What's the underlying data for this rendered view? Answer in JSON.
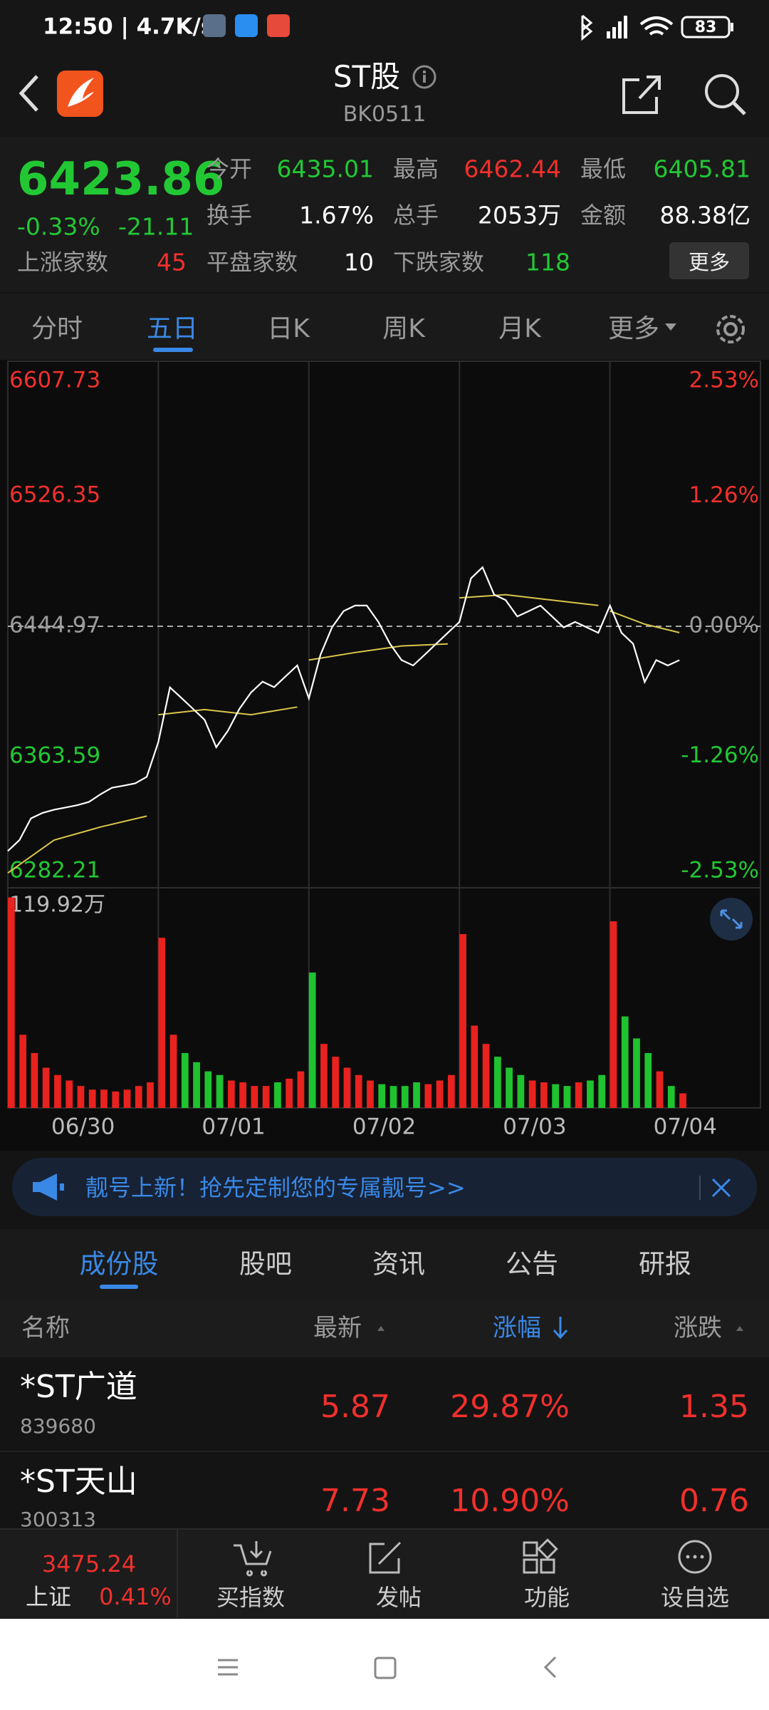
{
  "status": {
    "time": "12:50 | 4.7K/s",
    "battery": "83"
  },
  "header": {
    "title": "ST股",
    "code": "BK0511"
  },
  "quote": {
    "price": "6423.86",
    "change_pct": "-0.33%",
    "change": "-21.11",
    "fields": [
      {
        "label": "今开",
        "value": "6435.01"
      },
      {
        "label": "最高",
        "value": "6462.44"
      },
      {
        "label": "最低",
        "value": "6405.81"
      },
      {
        "label": "换手",
        "value": "1.67%"
      },
      {
        "label": "总手",
        "value": "2053万"
      },
      {
        "label": "金额",
        "value": "88.38亿"
      },
      {
        "label": "上涨家数",
        "value": "45"
      },
      {
        "label": "平盘家数",
        "value": "10"
      },
      {
        "label": "下跌家数",
        "value": "118"
      }
    ],
    "more": "更多"
  },
  "tabs": [
    "分时",
    "五日",
    "日K",
    "周K",
    "月K",
    "更多"
  ],
  "chart_data": {
    "type": "line",
    "categories": [
      "06/30",
      "07/01",
      "07/02",
      "07/03",
      "07/04"
    ],
    "xlim": [
      0,
      65
    ],
    "ylim": [
      6282.21,
      6607.73
    ],
    "yticks": [
      6607.73,
      6526.35,
      6444.97,
      6363.59,
      6282.21
    ],
    "y2lim": [
      -2.53,
      2.53
    ],
    "y2ticks": [
      {
        "value": 2.53,
        "label": "2.53%"
      },
      {
        "value": 1.26,
        "label": "1.26%"
      },
      {
        "value": 0,
        "label": "0.00%"
      },
      {
        "value": -1.26,
        "label": "-1.26%"
      },
      {
        "value": -2.53,
        "label": "-2.53%"
      }
    ],
    "series": [
      {
        "color": "#ffffff",
        "x": [
          0,
          1,
          2,
          3,
          4,
          5,
          6,
          7,
          8,
          9,
          10,
          11,
          12,
          13,
          14,
          15,
          16,
          17,
          18,
          19,
          20,
          21,
          22,
          23,
          24,
          25,
          26,
          27,
          28,
          29,
          30,
          31,
          32,
          33,
          34,
          35,
          36,
          37,
          38,
          39,
          40,
          41,
          42,
          43,
          44,
          45,
          46,
          47,
          48,
          49,
          50,
          51,
          52,
          53,
          54,
          55,
          56,
          57,
          58
        ],
        "values": [
          6304.7,
          6311.5,
          6325.1,
          6328.5,
          6330.5,
          6331.9,
          6333.3,
          6335.3,
          6340.1,
          6344.2,
          6345.5,
          6346.9,
          6351.0,
          6372.8,
          6406.8,
          6400.2,
          6393.4,
          6386.6,
          6369.5,
          6379.7,
          6393.4,
          6403.6,
          6410.4,
          6407.0,
          6413.8,
          6420.5,
          6400.0,
          6427.2,
          6444.3,
          6454.5,
          6457.9,
          6457.9,
          6447.7,
          6434.1,
          6423.9,
          6420.5,
          6427.2,
          6434.1,
          6440.9,
          6447.7,
          6474.9,
          6481.8,
          6464.7,
          6461.3,
          6451.1,
          6454.5,
          6457.9,
          6451.1,
          6444.3,
          6447.7,
          6444.3,
          6440.9,
          6457.9,
          6440.9,
          6434.1,
          6410.2,
          6423.9,
          6420.5,
          6423.86
        ]
      },
      {
        "color": "#d9c64a",
        "x": [
          0,
          4,
          8,
          12,
          13,
          17,
          21,
          25,
          26,
          30,
          34,
          38,
          39,
          43,
          47,
          51,
          52,
          55,
          58
        ],
        "values": [
          6291.0,
          6311.5,
          6319.7,
          6326.5,
          6389.8,
          6393.0,
          6389.8,
          6394.6,
          6423.9,
          6428.6,
          6432.7,
          6434.0,
          6462.7,
          6464.7,
          6461.3,
          6458.0,
          6454.5,
          6446.3,
          6441.0
        ]
      }
    ],
    "volume": {
      "type": "bar",
      "up_color": "#e8221e",
      "down_color": "#1fc22f",
      "ylim": [
        0,
        119.92
      ],
      "yticks": [
        {
          "value": 119.92,
          "label": "119.92万"
        }
      ],
      "values": [
        115,
        40,
        30,
        22,
        18,
        15,
        12,
        10,
        10,
        9,
        10,
        12,
        14,
        93,
        40,
        30,
        25,
        20,
        18,
        15,
        14,
        12,
        12,
        14,
        16,
        20,
        74,
        35,
        28,
        22,
        18,
        15,
        13,
        12,
        12,
        14,
        13,
        15,
        18,
        95,
        45,
        35,
        28,
        22,
        18,
        15,
        14,
        13,
        12,
        14,
        15,
        18,
        102,
        50,
        38,
        30,
        20,
        12,
        8
      ]
    }
  },
  "banner": "靓号上新！抢先定制您的专属靓号>>",
  "section_tabs": [
    "成份股",
    "股吧",
    "资讯",
    "公告",
    "研报"
  ],
  "table": {
    "header": [
      "名称",
      "最新",
      "涨幅",
      "涨跌"
    ],
    "rows": [
      [
        "*ST广道",
        "839680",
        "5.87",
        "29.87%",
        "1.35"
      ],
      [
        "*ST天山",
        "300313",
        "7.73",
        "10.90%",
        "0.76"
      ]
    ]
  },
  "bottom_bar": {
    "index_value": "3475.24",
    "index_name": "上证",
    "index_change": "0.41%",
    "items": [
      "买指数",
      "发帖",
      "功能",
      "设自选"
    ]
  }
}
